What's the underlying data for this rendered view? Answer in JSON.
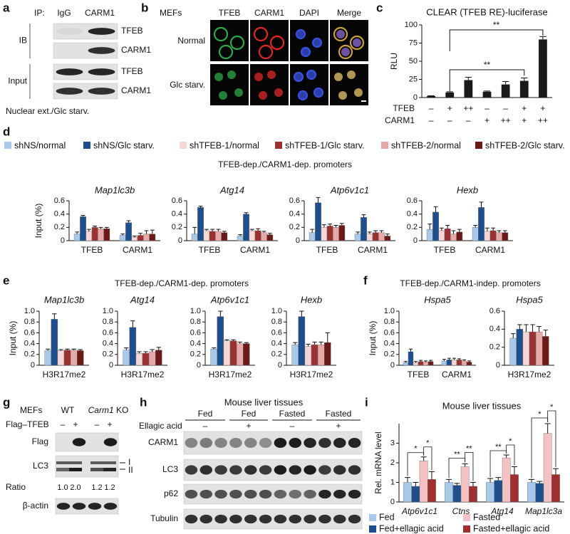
{
  "panel_a": {
    "label": "a",
    "ip": "IP:",
    "lanes": [
      "IgG",
      "CARM1"
    ],
    "groups": [
      {
        "label": "IB",
        "rows": [
          "TFEB",
          "CARM1"
        ]
      },
      {
        "label": "Input",
        "rows": [
          "TFEB",
          "CARM1"
        ]
      }
    ],
    "footer": "Nuclear ext./Glc starv."
  },
  "panel_b": {
    "label": "b",
    "cell": "MEFs",
    "channels": [
      {
        "label": "TFEB",
        "color": "#2ea84a"
      },
      {
        "label": "CARM1",
        "color": "#e02828"
      },
      {
        "label": "DAPI",
        "color": "#3a52e0"
      },
      {
        "label": "Merge",
        "color": "#111111"
      }
    ],
    "conditions": [
      "Normal",
      "Glc starv."
    ]
  },
  "panel_c": {
    "label": "c"
  },
  "panel_d": {
    "label": "d",
    "title": "TFEB-dep./CARM1-dep. promoters"
  },
  "panel_e": {
    "label": "e",
    "title": "TFEB-dep./CARM1-dep. promoters"
  },
  "panel_f": {
    "label": "f",
    "title": "TFEB-dep./CARM1-indep. promoters"
  },
  "panel_g": {
    "label": "g",
    "cell": "MEFs",
    "genotypes": [
      "WT",
      {
        "gene": "Carm1",
        "suffix": "KO"
      }
    ],
    "treatment": "Flag–TFEB",
    "lane_marks": [
      "–",
      "+",
      "–",
      "+"
    ],
    "rows": [
      "Flag",
      "LC3",
      "β-actin"
    ],
    "lc3_forms": [
      "I",
      "II"
    ],
    "ratio_label": "Ratio",
    "ratios": [
      "1.0",
      "2.0",
      "1.2",
      "1.2"
    ]
  },
  "panel_h": {
    "label": "h",
    "title": "Mouse liver tissues",
    "groups": [
      "Fed",
      "Fed",
      "Fasted",
      "Fasted"
    ],
    "treatment": "Ellagic acid",
    "group_marks": [
      "–",
      "+",
      "–",
      "+"
    ],
    "rows": [
      "CARM1",
      "LC3",
      "p62",
      "Tubulin"
    ]
  },
  "panel_i": {
    "label": "i"
  },
  "chart_data": [
    {
      "type": "bar",
      "title": "CLEAR (TFEB RE)-luciferase",
      "y_label": "RLU",
      "values": [
        2,
        7,
        24,
        8,
        18,
        23,
        80
      ],
      "errors": [
        0.5,
        1,
        4,
        1,
        4,
        4,
        4
      ],
      "color": "#1a1a1a",
      "ylim": [
        0,
        100
      ],
      "yticks": [
        0,
        25,
        50,
        75,
        100
      ],
      "conditions": [
        {
          "label": "TFEB",
          "marks": [
            "–",
            "+",
            "++",
            "–",
            "–",
            "+",
            "+"
          ]
        },
        {
          "label": "CARM1",
          "marks": [
            "–",
            "–",
            "–",
            "+",
            "++",
            "+",
            "++"
          ]
        }
      ],
      "annotations": [
        "**",
        "**"
      ]
    },
    {
      "type": "bar",
      "title": "Map1lc3b",
      "y_label": "Input (%)",
      "categories": [
        "TFEB",
        "CARM1"
      ],
      "ylim": [
        0,
        0.6
      ],
      "yticks": [
        0,
        0.2,
        0.4,
        0.6
      ],
      "series": [
        {
          "name": "shNS/normal",
          "color": "#a9c9ea",
          "values": [
            0.1,
            0.08
          ],
          "errors": [
            0.03,
            0.02
          ]
        },
        {
          "name": "shNS/Glc starv.",
          "color": "#1f4e8c",
          "values": [
            0.36,
            0.27
          ],
          "errors": [
            0.02,
            0.03
          ]
        },
        {
          "name": "shTFEB-1/normal",
          "color": "#f6d6d6",
          "values": [
            0.14,
            0.05
          ],
          "errors": [
            0.03,
            0.02
          ]
        },
        {
          "name": "shTFEB-1/Glc starv.",
          "color": "#9b3232",
          "values": [
            0.2,
            0.08
          ],
          "errors": [
            0.02,
            0.03
          ]
        },
        {
          "name": "shTFEB-2/normal",
          "color": "#e8a9a9",
          "values": [
            0.18,
            0.1
          ],
          "errors": [
            0.02,
            0.05
          ]
        },
        {
          "name": "shTFEB-2/Glc starv.",
          "color": "#6b1a1a",
          "values": [
            0.18,
            0.1
          ],
          "errors": [
            0.02,
            0.06
          ]
        }
      ]
    },
    {
      "type": "bar",
      "title": "Atg14",
      "categories": [
        "TFEB",
        "CARM1"
      ],
      "ylim": [
        0,
        0.6
      ],
      "yticks": [
        0,
        0.2,
        0.4,
        0.6
      ],
      "series": [
        {
          "color": "#a9c9ea",
          "values": [
            0.1,
            0.07
          ],
          "errors": [
            0.1,
            0.02
          ]
        },
        {
          "color": "#1f4e8c",
          "values": [
            0.5,
            0.4
          ],
          "errors": [
            0.02,
            0.02
          ]
        },
        {
          "color": "#f6d6d6",
          "values": [
            0.15,
            0.15
          ],
          "errors": [
            0.02,
            0.02
          ]
        },
        {
          "color": "#9b3232",
          "values": [
            0.14,
            0.15
          ],
          "errors": [
            0.03,
            0.03
          ]
        },
        {
          "color": "#e8a9a9",
          "values": [
            0.14,
            0.12
          ],
          "errors": [
            0.03,
            0.02
          ]
        },
        {
          "color": "#6b1a1a",
          "values": [
            0.12,
            0.09
          ],
          "errors": [
            0.02,
            0.02
          ]
        }
      ]
    },
    {
      "type": "bar",
      "title": "Atp6v1c1",
      "categories": [
        "TFEB",
        "CARM1"
      ],
      "ylim": [
        0,
        0.6
      ],
      "yticks": [
        0,
        0.2,
        0.4,
        0.6
      ],
      "series": [
        {
          "color": "#a9c9ea",
          "values": [
            0.12,
            0.1
          ],
          "errors": [
            0.05,
            0.03
          ]
        },
        {
          "color": "#1f4e8c",
          "values": [
            0.57,
            0.35
          ],
          "errors": [
            0.08,
            0.04
          ]
        },
        {
          "color": "#f6d6d6",
          "values": [
            0.2,
            0.1
          ],
          "errors": [
            0.04,
            0.03
          ]
        },
        {
          "color": "#9b3232",
          "values": [
            0.22,
            0.12
          ],
          "errors": [
            0.03,
            0.03
          ]
        },
        {
          "color": "#e8a9a9",
          "values": [
            0.2,
            0.12
          ],
          "errors": [
            0.03,
            0.03
          ]
        },
        {
          "color": "#6b1a1a",
          "values": [
            0.23,
            0.07
          ],
          "errors": [
            0.03,
            0.03
          ]
        }
      ]
    },
    {
      "type": "bar",
      "title": "Hexb",
      "categories": [
        "TFEB",
        "CARM1"
      ],
      "ylim": [
        0,
        0.6
      ],
      "yticks": [
        0,
        0.2,
        0.4,
        0.6
      ],
      "series": [
        {
          "color": "#a9c9ea",
          "values": [
            0.17,
            0.2
          ],
          "errors": [
            0.08,
            0.03
          ]
        },
        {
          "color": "#1f4e8c",
          "values": [
            0.43,
            0.5
          ],
          "errors": [
            0.08,
            0.08
          ]
        },
        {
          "color": "#f6d6d6",
          "values": [
            0.15,
            0.14
          ],
          "errors": [
            0.04,
            0.05
          ]
        },
        {
          "color": "#9b3232",
          "values": [
            0.18,
            0.15
          ],
          "errors": [
            0.05,
            0.04
          ]
        },
        {
          "color": "#e8a9a9",
          "values": [
            0.1,
            0.12
          ],
          "errors": [
            0.05,
            0.03
          ]
        },
        {
          "color": "#6b1a1a",
          "values": [
            0.13,
            0.12
          ],
          "errors": [
            0.04,
            0.03
          ]
        }
      ]
    },
    {
      "type": "bar",
      "title": "Map1lc3b",
      "y_label": "Input (%)",
      "categories": [
        "H3R17me2"
      ],
      "ylim": [
        0,
        1
      ],
      "yticks": [
        0,
        0.2,
        0.4,
        0.6,
        0.8,
        {
          "value": 1,
          "label": "1.0"
        }
      ],
      "series": [
        {
          "color": "#a9c9ea",
          "values": [
            0.27
          ],
          "errors": [
            0.03
          ]
        },
        {
          "color": "#1f4e8c",
          "values": [
            0.85
          ],
          "errors": [
            0.1
          ]
        },
        {
          "color": "#f6d6d6",
          "values": [
            0.27
          ],
          "errors": [
            0.02
          ]
        },
        {
          "color": "#9b3232",
          "values": [
            0.28
          ],
          "errors": [
            0.02
          ]
        },
        {
          "color": "#e8a9a9",
          "values": [
            0.28
          ],
          "errors": [
            0.02
          ]
        },
        {
          "color": "#6b1a1a",
          "values": [
            0.27
          ],
          "errors": [
            0.02
          ]
        }
      ]
    },
    {
      "type": "bar",
      "title": "Atg14",
      "categories": [
        "H3R17me2"
      ],
      "ylim": [
        0,
        1
      ],
      "yticks": [
        0,
        0.2,
        0.4,
        0.6,
        0.8,
        {
          "value": 1,
          "label": "1.0"
        }
      ],
      "series": [
        {
          "color": "#a9c9ea",
          "values": [
            0.28
          ],
          "errors": [
            0.04
          ]
        },
        {
          "color": "#1f4e8c",
          "values": [
            0.7
          ],
          "errors": [
            0.12
          ]
        },
        {
          "color": "#f6d6d6",
          "values": [
            0.22
          ],
          "errors": [
            0.03
          ]
        },
        {
          "color": "#9b3232",
          "values": [
            0.22
          ],
          "errors": [
            0.03
          ]
        },
        {
          "color": "#e8a9a9",
          "values": [
            0.25
          ],
          "errors": [
            0.04
          ]
        },
        {
          "color": "#6b1a1a",
          "values": [
            0.28
          ],
          "errors": [
            0.05
          ]
        }
      ]
    },
    {
      "type": "bar",
      "title": "Atp6v1c1",
      "categories": [
        "H3R17me2"
      ],
      "ylim": [
        0,
        1
      ],
      "yticks": [
        0,
        0.2,
        0.4,
        0.6,
        0.8,
        {
          "value": 1,
          "label": "1.0"
        }
      ],
      "series": [
        {
          "color": "#a9c9ea",
          "values": [
            0.3
          ],
          "errors": [
            0.02
          ]
        },
        {
          "color": "#1f4e8c",
          "values": [
            0.9
          ],
          "errors": [
            0.1
          ]
        },
        {
          "color": "#f6d6d6",
          "values": [
            0.45
          ],
          "errors": [
            0.02
          ]
        },
        {
          "color": "#9b3232",
          "values": [
            0.45
          ],
          "errors": [
            0.02
          ]
        },
        {
          "color": "#e8a9a9",
          "values": [
            0.4
          ],
          "errors": [
            0.03
          ]
        },
        {
          "color": "#6b1a1a",
          "values": [
            0.4
          ],
          "errors": [
            0.02
          ]
        }
      ]
    },
    {
      "type": "bar",
      "title": "Hexb",
      "categories": [
        "H3R17me2"
      ],
      "ylim": [
        0,
        1
      ],
      "yticks": [
        0,
        0.2,
        0.4,
        0.6,
        0.8,
        {
          "value": 1,
          "label": "1.0"
        }
      ],
      "series": [
        {
          "color": "#a9c9ea",
          "values": [
            0.38
          ],
          "errors": [
            0.04
          ]
        },
        {
          "color": "#1f4e8c",
          "values": [
            0.9
          ],
          "errors": [
            0.1
          ]
        },
        {
          "color": "#f6d6d6",
          "values": [
            0.35
          ],
          "errors": [
            0.04
          ]
        },
        {
          "color": "#9b3232",
          "values": [
            0.38
          ],
          "errors": [
            0.05
          ]
        },
        {
          "color": "#e8a9a9",
          "values": [
            0.38
          ],
          "errors": [
            0.05
          ]
        },
        {
          "color": "#6b1a1a",
          "values": [
            0.42
          ],
          "errors": [
            0.18
          ]
        }
      ]
    },
    {
      "type": "bar",
      "title": "Hspa5",
      "y_label": "Input (%)",
      "categories": [
        "TFEB",
        "CARM1"
      ],
      "ylim": [
        0,
        1
      ],
      "yticks": [
        0,
        0.2,
        0.4,
        0.6,
        0.8,
        {
          "value": 1,
          "label": "1.0"
        }
      ],
      "series": [
        {
          "color": "#a9c9ea",
          "values": [
            0.05,
            0.08
          ],
          "errors": [
            0.02,
            0.03
          ]
        },
        {
          "color": "#1f4e8c",
          "values": [
            0.25,
            0.1
          ],
          "errors": [
            0.05,
            0.03
          ]
        },
        {
          "color": "#f6d6d6",
          "values": [
            0.05,
            0.1
          ],
          "errors": [
            0.02,
            0.03
          ]
        },
        {
          "color": "#9b3232",
          "values": [
            0.07,
            0.1
          ],
          "errors": [
            0.02,
            0.02
          ]
        },
        {
          "color": "#e8a9a9",
          "values": [
            0.06,
            0.08
          ],
          "errors": [
            0.02,
            0.02
          ]
        },
        {
          "color": "#6b1a1a",
          "values": [
            0.07,
            0.06
          ],
          "errors": [
            0.02,
            0.02
          ]
        }
      ]
    },
    {
      "type": "bar",
      "title": "Hspa5",
      "categories": [
        "H3R17me2"
      ],
      "ylim": [
        0,
        0.6
      ],
      "yticks": [
        0,
        0.2,
        0.4,
        0.6
      ],
      "series": [
        {
          "color": "#a9c9ea",
          "values": [
            0.3
          ],
          "errors": [
            0.05
          ]
        },
        {
          "color": "#1f4e8c",
          "values": [
            0.4
          ],
          "errors": [
            0.05
          ]
        },
        {
          "color": "#f6d6d6",
          "values": [
            0.37
          ],
          "errors": [
            0.08
          ]
        },
        {
          "color": "#9b3232",
          "values": [
            0.37
          ],
          "errors": [
            0.08
          ]
        },
        {
          "color": "#e8a9a9",
          "values": [
            0.37
          ],
          "errors": [
            0.06
          ]
        },
        {
          "color": "#6b1a1a",
          "values": [
            0.32
          ],
          "errors": [
            0.07
          ]
        }
      ]
    },
    {
      "type": "bar",
      "title": "Mouse liver tissues",
      "y_label": "Rel. mRNA level",
      "categories": [
        "Atp6v1c1",
        "Ctns",
        "Atg14",
        "Map1lc3a"
      ],
      "ylim": [
        0,
        4
      ],
      "yticks": [
        0,
        1,
        2,
        3
      ],
      "series": [
        {
          "name": "Fed",
          "color": "#a9c9ea",
          "values": [
            1,
            1,
            1,
            1
          ],
          "errors": [
            0.25,
            0.15,
            0.2,
            0.15
          ]
        },
        {
          "name": "Fed+ellagic acid",
          "color": "#1f4e8c",
          "values": [
            0.8,
            0.85,
            1.1,
            0.95
          ],
          "errors": [
            0.2,
            0.1,
            0.15,
            0.1
          ]
        },
        {
          "name": "Fasted",
          "color": "#f4c2c2",
          "values": [
            2.1,
            1.8,
            2.25,
            3.5
          ],
          "errors": [
            0.2,
            0.15,
            0.15,
            0.5
          ]
        },
        {
          "name": "Fasted+ellagic acid",
          "color": "#a03030",
          "values": [
            1.15,
            0.8,
            1.4,
            1.4
          ],
          "errors": [
            0.4,
            0.2,
            0.4,
            0.3
          ]
        }
      ],
      "annotations": [
        "*",
        "*",
        "**",
        "**",
        "**",
        "*",
        "*",
        "*"
      ]
    }
  ]
}
